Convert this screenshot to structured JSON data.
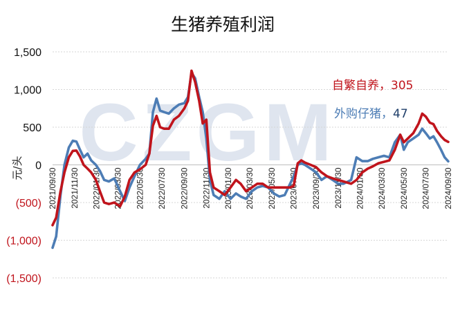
{
  "chart_data": {
    "type": "line",
    "title": "生猪养殖利润",
    "ylabel": "元/头",
    "xlabel": "",
    "ylim": [
      -1500,
      1500
    ],
    "yticks": [
      -1500,
      -1000,
      -500,
      0,
      500,
      1000,
      1500
    ],
    "ytick_labels": [
      "(1,500)",
      "(1,000)",
      "(500)",
      "0",
      "500",
      "1,000",
      "1,500"
    ],
    "xlim": [
      "2021-09-30",
      "2024-09-30"
    ],
    "xtick_labels": [
      "2021/09/30",
      "2021/11/30",
      "2022/01/30",
      "2022/03/30",
      "2022/05/30",
      "2022/07/30",
      "2022/09/30",
      "2022/11/30",
      "2023/01/30",
      "2023/03/30",
      "2023/05/30",
      "2023/07/30",
      "2023/09/30",
      "2023/11/30",
      "2024/01/30",
      "2024/03/30",
      "2024/05/30",
      "2024/07/30",
      "2024/09/30"
    ],
    "grid": true,
    "watermark": "CZGM",
    "series": [
      {
        "name": "自繁自养",
        "latest_label": "305",
        "color": "#c0141c",
        "points": [
          [
            "2021-09-30",
            -800
          ],
          [
            "2021-10-10",
            -700
          ],
          [
            "2021-10-22",
            -350
          ],
          [
            "2021-11-02",
            -100
          ],
          [
            "2021-11-14",
            100
          ],
          [
            "2021-11-25",
            185
          ],
          [
            "2021-12-05",
            190
          ],
          [
            "2021-12-15",
            110
          ],
          [
            "2021-12-25",
            0
          ],
          [
            "2022-01-05",
            -50
          ],
          [
            "2022-01-15",
            -100
          ],
          [
            "2022-01-28",
            -200
          ],
          [
            "2022-02-08",
            -350
          ],
          [
            "2022-02-20",
            -500
          ],
          [
            "2022-03-05",
            -520
          ],
          [
            "2022-03-20",
            -500
          ],
          [
            "2022-04-05",
            -550
          ],
          [
            "2022-04-18",
            -420
          ],
          [
            "2022-05-01",
            -200
          ],
          [
            "2022-05-15",
            -100
          ],
          [
            "2022-05-30",
            -60
          ],
          [
            "2022-06-15",
            0
          ],
          [
            "2022-06-25",
            150
          ],
          [
            "2022-07-05",
            520
          ],
          [
            "2022-07-15",
            650
          ],
          [
            "2022-07-25",
            500
          ],
          [
            "2022-08-05",
            480
          ],
          [
            "2022-08-18",
            480
          ],
          [
            "2022-09-01",
            600
          ],
          [
            "2022-09-15",
            650
          ],
          [
            "2022-09-30",
            750
          ],
          [
            "2022-10-10",
            850
          ],
          [
            "2022-10-20",
            1250
          ],
          [
            "2022-10-30",
            1100
          ],
          [
            "2022-11-10",
            850
          ],
          [
            "2022-11-20",
            550
          ],
          [
            "2022-11-30",
            600
          ],
          [
            "2022-12-10",
            -100
          ],
          [
            "2022-12-20",
            -300
          ],
          [
            "2023-01-05",
            -350
          ],
          [
            "2023-01-20",
            -400
          ],
          [
            "2023-02-05",
            -300
          ],
          [
            "2023-02-20",
            -200
          ],
          [
            "2023-03-05",
            -250
          ],
          [
            "2023-03-20",
            -350
          ],
          [
            "2023-04-05",
            -300
          ],
          [
            "2023-04-20",
            -250
          ],
          [
            "2023-05-05",
            -250
          ],
          [
            "2023-05-20",
            -300
          ],
          [
            "2023-06-05",
            -300
          ],
          [
            "2023-06-20",
            -300
          ],
          [
            "2023-07-05",
            -300
          ],
          [
            "2023-07-20",
            -300
          ],
          [
            "2023-07-30",
            -280
          ],
          [
            "2023-08-10",
            20
          ],
          [
            "2023-08-20",
            60
          ],
          [
            "2023-08-30",
            30
          ],
          [
            "2023-09-15",
            0
          ],
          [
            "2023-09-30",
            -30
          ],
          [
            "2023-10-15",
            -100
          ],
          [
            "2023-10-30",
            -150
          ],
          [
            "2023-11-15",
            -180
          ],
          [
            "2023-11-30",
            -200
          ],
          [
            "2023-12-15",
            -220
          ],
          [
            "2024-01-05",
            -250
          ],
          [
            "2024-01-20",
            -200
          ],
          [
            "2024-02-05",
            -100
          ],
          [
            "2024-02-20",
            -50
          ],
          [
            "2024-03-05",
            -20
          ],
          [
            "2024-03-20",
            20
          ],
          [
            "2024-04-05",
            40
          ],
          [
            "2024-04-20",
            60
          ],
          [
            "2024-05-05",
            200
          ],
          [
            "2024-05-20",
            400
          ],
          [
            "2024-05-30",
            300
          ],
          [
            "2024-06-10",
            350
          ],
          [
            "2024-06-25",
            420
          ],
          [
            "2024-07-10",
            550
          ],
          [
            "2024-07-20",
            680
          ],
          [
            "2024-07-30",
            640
          ],
          [
            "2024-08-10",
            560
          ],
          [
            "2024-08-20",
            540
          ],
          [
            "2024-08-30",
            450
          ],
          [
            "2024-09-10",
            380
          ],
          [
            "2024-09-20",
            330
          ],
          [
            "2024-09-30",
            305
          ]
        ]
      },
      {
        "name": "外购仔猪",
        "latest_label": "47",
        "color": "#4d7db5",
        "points": [
          [
            "2021-09-30",
            -1100
          ],
          [
            "2021-10-10",
            -950
          ],
          [
            "2021-10-22",
            -400
          ],
          [
            "2021-11-02",
            0
          ],
          [
            "2021-11-14",
            230
          ],
          [
            "2021-11-25",
            320
          ],
          [
            "2021-12-05",
            310
          ],
          [
            "2021-12-15",
            200
          ],
          [
            "2021-12-25",
            100
          ],
          [
            "2022-01-05",
            150
          ],
          [
            "2022-01-15",
            60
          ],
          [
            "2022-01-28",
            0
          ],
          [
            "2022-02-08",
            -80
          ],
          [
            "2022-02-20",
            -200
          ],
          [
            "2022-03-05",
            -220
          ],
          [
            "2022-03-20",
            -180
          ],
          [
            "2022-04-05",
            -350
          ],
          [
            "2022-04-18",
            -480
          ],
          [
            "2022-05-01",
            -300
          ],
          [
            "2022-05-15",
            -150
          ],
          [
            "2022-05-30",
            0
          ],
          [
            "2022-06-15",
            80
          ],
          [
            "2022-06-25",
            150
          ],
          [
            "2022-07-05",
            700
          ],
          [
            "2022-07-15",
            880
          ],
          [
            "2022-07-25",
            720
          ],
          [
            "2022-08-05",
            700
          ],
          [
            "2022-08-18",
            680
          ],
          [
            "2022-09-01",
            750
          ],
          [
            "2022-09-15",
            800
          ],
          [
            "2022-09-30",
            820
          ],
          [
            "2022-10-10",
            900
          ],
          [
            "2022-10-20",
            1220
          ],
          [
            "2022-10-30",
            1150
          ],
          [
            "2022-11-10",
            900
          ],
          [
            "2022-11-20",
            700
          ],
          [
            "2022-11-30",
            350
          ],
          [
            "2022-12-10",
            -200
          ],
          [
            "2022-12-20",
            -400
          ],
          [
            "2023-01-05",
            -450
          ],
          [
            "2023-01-20",
            -350
          ],
          [
            "2023-02-05",
            -450
          ],
          [
            "2023-02-20",
            -380
          ],
          [
            "2023-03-05",
            -420
          ],
          [
            "2023-03-20",
            -450
          ],
          [
            "2023-04-05",
            -350
          ],
          [
            "2023-04-20",
            -300
          ],
          [
            "2023-05-05",
            -280
          ],
          [
            "2023-05-20",
            -300
          ],
          [
            "2023-06-05",
            -380
          ],
          [
            "2023-06-20",
            -420
          ],
          [
            "2023-07-05",
            -400
          ],
          [
            "2023-07-20",
            -250
          ],
          [
            "2023-07-30",
            -150
          ],
          [
            "2023-08-10",
            0
          ],
          [
            "2023-08-20",
            20
          ],
          [
            "2023-08-30",
            0
          ],
          [
            "2023-09-15",
            -50
          ],
          [
            "2023-09-30",
            -100
          ],
          [
            "2023-10-15",
            -200
          ],
          [
            "2023-10-30",
            -150
          ],
          [
            "2023-11-15",
            -200
          ],
          [
            "2023-11-30",
            -250
          ],
          [
            "2023-12-15",
            -250
          ],
          [
            "2024-01-05",
            -200
          ],
          [
            "2024-01-20",
            100
          ],
          [
            "2024-02-05",
            50
          ],
          [
            "2024-02-20",
            50
          ],
          [
            "2024-03-05",
            80
          ],
          [
            "2024-03-20",
            100
          ],
          [
            "2024-04-05",
            120
          ],
          [
            "2024-04-20",
            100
          ],
          [
            "2024-05-05",
            300
          ],
          [
            "2024-05-20",
            400
          ],
          [
            "2024-05-30",
            200
          ],
          [
            "2024-06-10",
            300
          ],
          [
            "2024-06-25",
            350
          ],
          [
            "2024-07-10",
            400
          ],
          [
            "2024-07-20",
            480
          ],
          [
            "2024-07-30",
            420
          ],
          [
            "2024-08-10",
            350
          ],
          [
            "2024-08-20",
            380
          ],
          [
            "2024-08-30",
            300
          ],
          [
            "2024-09-10",
            200
          ],
          [
            "2024-09-20",
            100
          ],
          [
            "2024-09-30",
            47
          ]
        ]
      }
    ]
  }
}
